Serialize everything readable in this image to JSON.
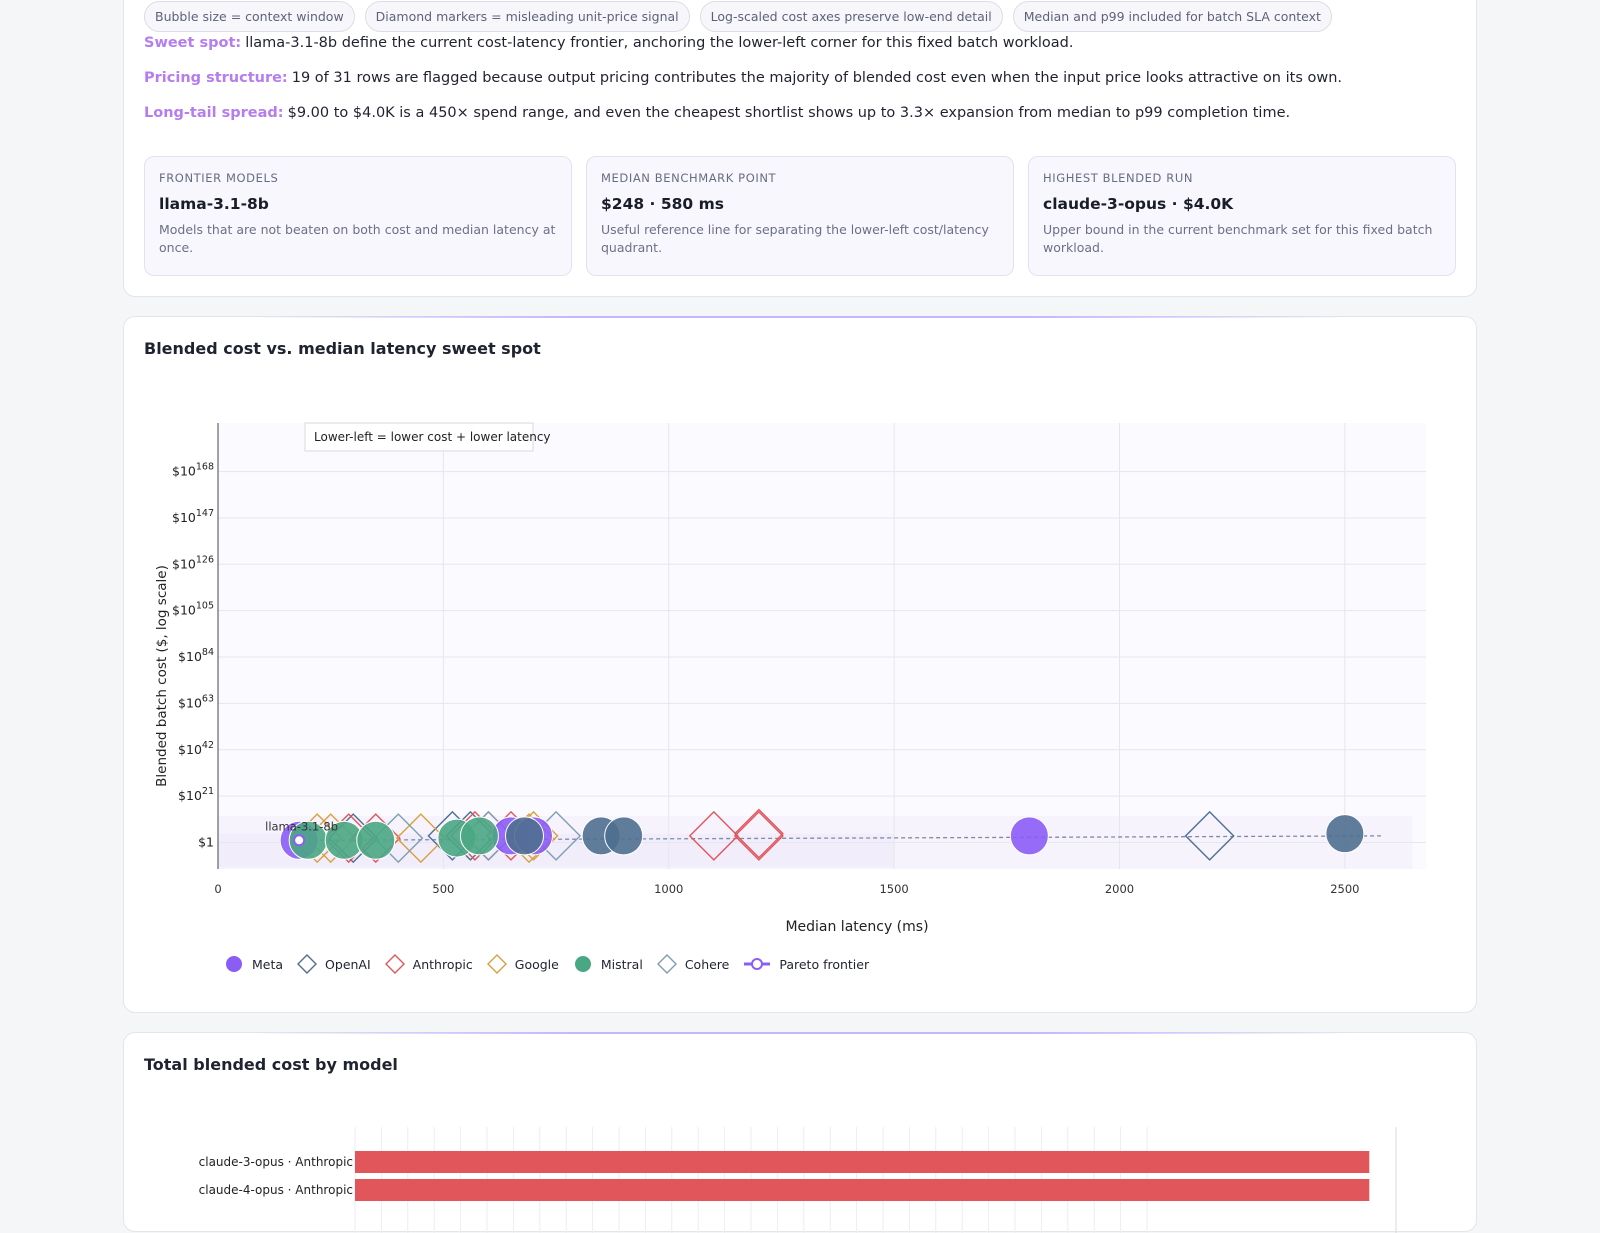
{
  "chips": [
    "Bubble size = context window",
    "Diamond markers = misleading unit-price signal",
    "Log-scaled cost axes preserve low-end detail",
    "Median and p99 included for batch SLA context"
  ],
  "insights": [
    {
      "label": "Sweet spot:",
      "text": "llama-3.1-8b define the current cost-latency frontier, anchoring the lower-left corner for this fixed batch workload."
    },
    {
      "label": "Pricing structure:",
      "text": "19 of 31 rows are flagged because output pricing contributes the majority of blended cost even when the input price looks attractive on its own."
    },
    {
      "label": "Long-tail spread:",
      "text": "$9.00 to $4.0K is a 450× spend range, and even the cheapest shortlist shows up to 3.3× expansion from median to p99 completion time."
    }
  ],
  "stats": [
    {
      "label": "FRONTIER MODELS",
      "value": "llama-3.1-8b",
      "desc": "Models that are not beaten on both cost and median latency at once."
    },
    {
      "label": "MEDIAN BENCHMARK POINT",
      "value": "$248 · 580 ms",
      "desc": "Useful reference line for separating the lower-left cost/latency quadrant."
    },
    {
      "label": "HIGHEST BLENDED RUN",
      "value": "claude-3-opus · $4.0K",
      "desc": "Upper bound in the current benchmark set for this fixed batch workload."
    }
  ],
  "scatter_title": "Blended cost vs. median latency sweet spot",
  "bar_title": "Total blended cost by model",
  "colors": {
    "Meta": "#8b5cf6",
    "OpenAI": "#4f6f90",
    "Anthropic": "#e0565b",
    "Google": "#d9a03f",
    "Mistral": "#4aa784",
    "Cohere": "#7f9fb0",
    "Pareto frontier": "#8b5cf6"
  },
  "chart_data": [
    {
      "type": "scatter",
      "title": "",
      "xlabel": "Median latency (ms)",
      "ylabel": "Blended batch cost ($, log scale)",
      "xlim": [
        0,
        2680
      ],
      "x_ticks": [
        0,
        500,
        1000,
        1500,
        2000,
        2500
      ],
      "y_ticks": [
        {
          "base": "$1",
          "exp": ""
        },
        {
          "base": "$10",
          "exp": "21"
        },
        {
          "base": "$10",
          "exp": "42"
        },
        {
          "base": "$10",
          "exp": "63"
        },
        {
          "base": "$10",
          "exp": "84"
        },
        {
          "base": "$10",
          "exp": "105"
        },
        {
          "base": "$10",
          "exp": "126"
        },
        {
          "base": "$10",
          "exp": "147"
        },
        {
          "base": "$10",
          "exp": "168"
        }
      ],
      "y_log_exponent_range": [
        -12,
        190
      ],
      "annotation": "Lower-left = lower cost + lower latency",
      "frontier_label": "llama-3.1-8b",
      "legend": [
        "Meta",
        "OpenAI",
        "Anthropic",
        "Google",
        "Mistral",
        "Cohere",
        "Pareto frontier"
      ],
      "series": [
        {
          "name": "Meta",
          "marker": "circle",
          "points": [
            [
              180,
              1
            ],
            [
              650,
              3
            ],
            [
              700,
              3
            ],
            [
              1800,
              3
            ]
          ]
        },
        {
          "name": "OpenAI",
          "marker": "diamond",
          "points": [
            [
              300,
              2
            ],
            [
              520,
              3
            ],
            [
              560,
              3
            ],
            [
              2200,
              3
            ]
          ]
        },
        {
          "name": "Anthropic",
          "marker": "diamond",
          "points": [
            [
              290,
              2
            ],
            [
              350,
              2
            ],
            [
              570,
              3
            ],
            [
              600,
              3
            ],
            [
              650,
              3
            ],
            [
              1100,
              3
            ],
            [
              1200,
              3
            ],
            [
              1200,
              4
            ]
          ]
        },
        {
          "name": "Google",
          "marker": "diamond",
          "points": [
            [
              220,
              2
            ],
            [
              250,
              2
            ],
            [
              450,
              2
            ],
            [
              690,
              2
            ],
            [
              700,
              3
            ]
          ]
        },
        {
          "name": "Mistral",
          "marker": "circle",
          "points": [
            [
              200,
              1
            ],
            [
              280,
              1
            ],
            [
              350,
              1
            ],
            [
              530,
              2
            ],
            [
              580,
              3
            ]
          ]
        },
        {
          "name": "Cohere",
          "marker": "diamond",
          "points": [
            [
              400,
              2
            ],
            [
              600,
              3
            ],
            [
              750,
              3
            ]
          ]
        },
        {
          "name": "OpenAI",
          "marker": "circle",
          "points": [
            [
              680,
              3
            ],
            [
              850,
              3
            ],
            [
              900,
              3
            ],
            [
              2500,
              4
            ]
          ]
        }
      ],
      "pareto_frontier": [
        [
          180,
          1
        ],
        [
          2580,
          3
        ]
      ]
    },
    {
      "type": "bar",
      "title": "Total blended cost by model",
      "categories": [
        "claude-3-opus · Anthropic",
        "claude-4-opus · Anthropic"
      ],
      "values": [
        4000,
        4000
      ],
      "xlim": [
        0,
        4200
      ]
    }
  ]
}
